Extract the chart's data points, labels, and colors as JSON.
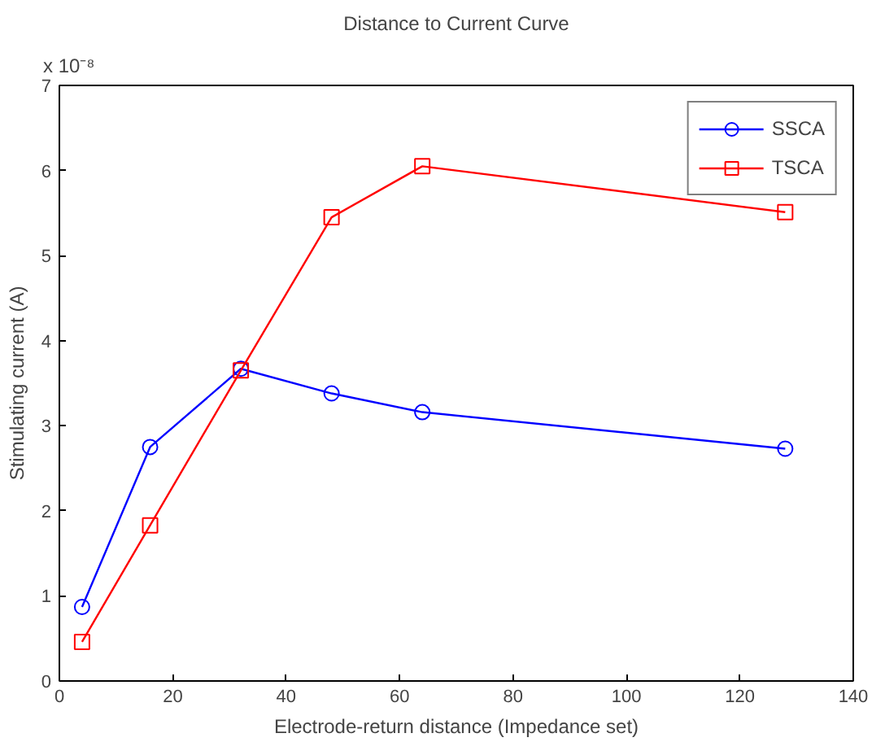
{
  "chart_data": {
    "type": "line",
    "title": "Distance to Current Curve",
    "xlabel": "Electrode-return distance (Impedance set)",
    "ylabel": "Stimulating current (A)",
    "annotations": [
      "x 10⁻⁸"
    ],
    "x": [
      4,
      16,
      32,
      48,
      64,
      128
    ],
    "series": [
      {
        "name": "SSCA",
        "color": "#0000ff",
        "marker": "circle",
        "values": [
          0.87,
          2.75,
          3.67,
          3.38,
          3.16,
          2.73
        ]
      },
      {
        "name": "TSCA",
        "color": "#ff0000",
        "marker": "square",
        "values": [
          0.46,
          1.83,
          3.65,
          5.45,
          6.05,
          5.51
        ]
      }
    ],
    "xlim": [
      0,
      140
    ],
    "xticks": [
      0,
      20,
      40,
      60,
      80,
      100,
      120,
      140
    ],
    "ylim": [
      0,
      7
    ],
    "yticks": [
      0,
      1,
      2,
      3,
      4,
      5,
      6,
      7
    ],
    "grid": false,
    "legend": "top right",
    "line_style": "solid"
  }
}
